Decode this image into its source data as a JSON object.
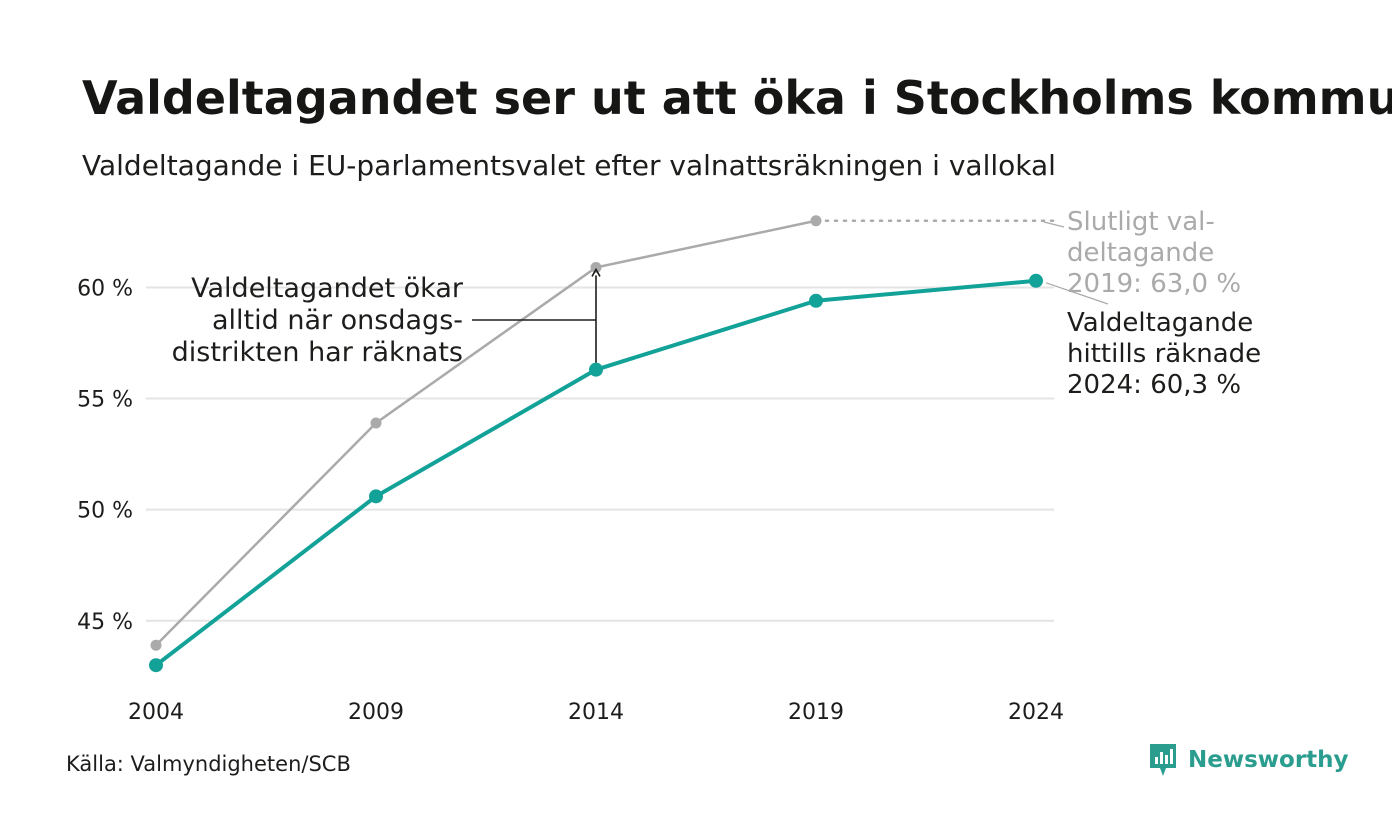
{
  "header": {
    "title": "Valdeltagandet ser ut att öka i Stockholms kommu",
    "subtitle": "Valdeltagande i EU-parlamentsvalet efter valnattsräkningen i vallokal"
  },
  "footer": {
    "source": "Källa: Valmyndigheten/SCB",
    "brand": "Newsworthy",
    "brand_icon": "newsworthy-logo-icon"
  },
  "chart_data": {
    "type": "line",
    "x": [
      2004,
      2009,
      2014,
      2019,
      2024
    ],
    "x_tick_labels": [
      "2004",
      "2009",
      "2014",
      "2019",
      "2024"
    ],
    "y_ticks": [
      45,
      50,
      55,
      60
    ],
    "y_tick_labels": [
      "45 %",
      "50 %",
      "55 %",
      "60 %"
    ],
    "ylim": [
      42.2,
      63.8
    ],
    "grid": true,
    "series": [
      {
        "key": "final",
        "color": "#aaaaaa",
        "values": [
          43.9,
          53.9,
          60.9,
          63.0,
          null
        ]
      },
      {
        "key": "counted",
        "color": "#12a298",
        "values": [
          43.0,
          50.6,
          56.3,
          59.4,
          60.3
        ]
      }
    ],
    "annotations": [
      {
        "key": "final_label",
        "lines": [
          "Slutligt val-",
          "deltagande",
          "2019: 63,0 %"
        ],
        "color": "#aaaaaa"
      },
      {
        "key": "counted_label",
        "lines": [
          "Valdeltagande",
          "hittills räknade",
          "2024: 60,3 %"
        ],
        "color": "#1d1d1b"
      },
      {
        "key": "increase_note",
        "lines": [
          "Valdeltagandet ökar",
          "alltid när onsdags-",
          "distrikten har räknats"
        ],
        "color": "#1d1d1b"
      }
    ]
  }
}
